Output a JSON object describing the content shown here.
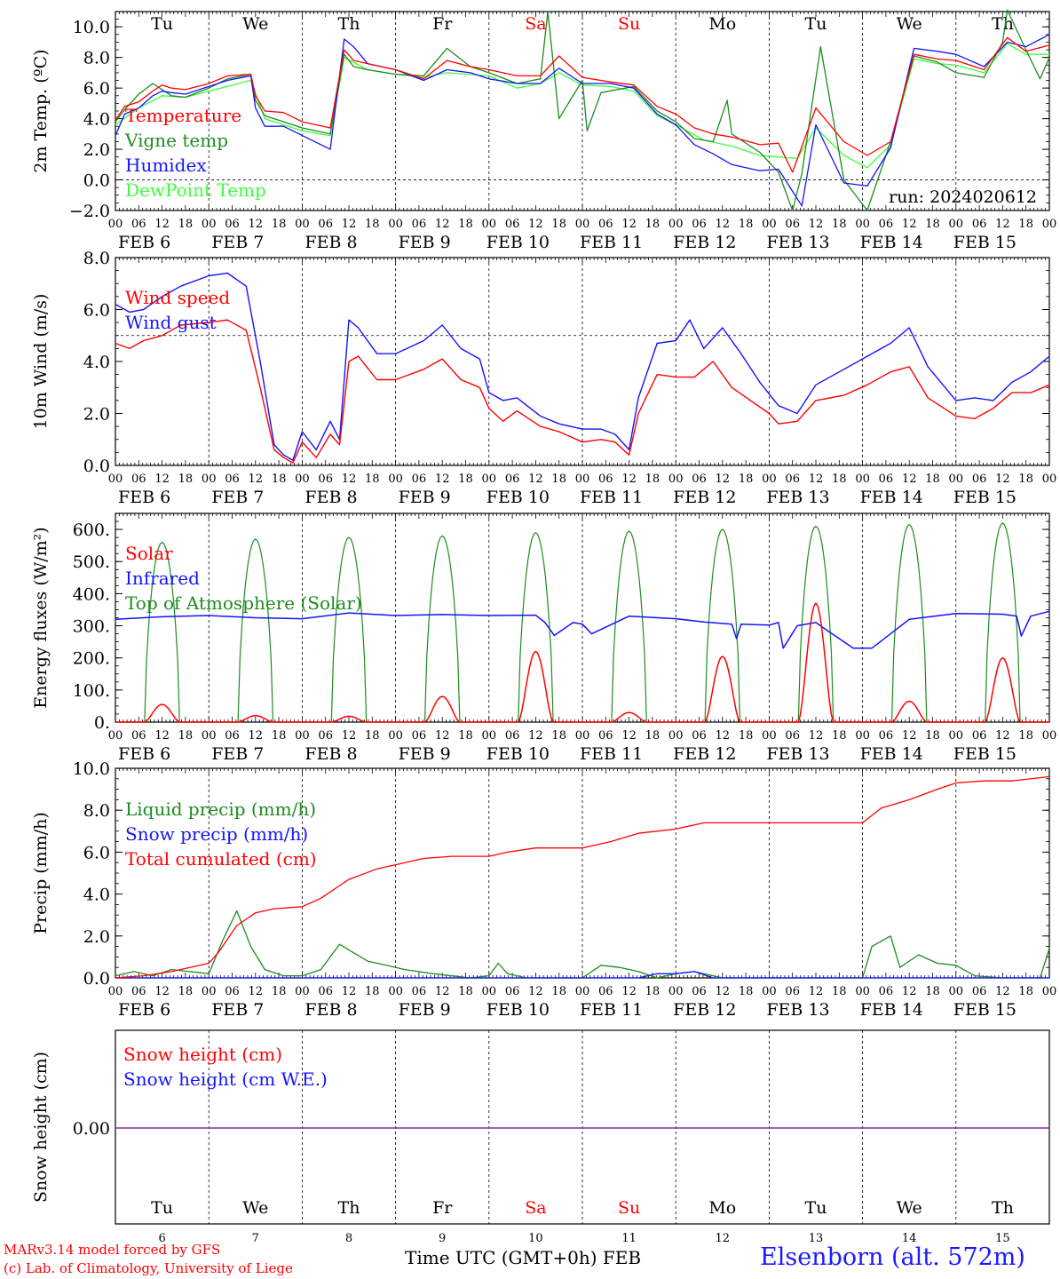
{
  "colors": {
    "red": "#ff0000",
    "green": "#1e8c1e",
    "blue": "#1414ff",
    "lightgreen": "#3cff3c",
    "purple": "#8030a0",
    "weekend": "#ff0000"
  },
  "days": [
    "Tu",
    "We",
    "Th",
    "Fr",
    "Sa",
    "Su",
    "Mo",
    "Tu",
    "We",
    "Th"
  ],
  "weekend_days": [
    4,
    5
  ],
  "date_labels": [
    "FEB  6",
    "FEB  7",
    "FEB  8",
    "FEB  9",
    "FEB 10",
    "FEB 11",
    "FEB 12",
    "FEB 13",
    "FEB 14",
    "FEB 15"
  ],
  "date_numbers": [
    "6",
    "7",
    "8",
    "9",
    "10",
    "11",
    "12",
    "13",
    "14",
    "15"
  ],
  "hour_ticks": [
    "00",
    "06",
    "12",
    "18"
  ],
  "hour_end": "00",
  "run_label": "run: 2024020612",
  "footer": {
    "model": "MARv3.14 model forced by GFS",
    "copyright": "(c) Lab. of Climatology, University of Liege",
    "time_axis": "Time UTC (GMT+0h) FEB",
    "station": "Elsenborn (alt. 572m)"
  },
  "chart_data": [
    {
      "type": "line",
      "ylabel": "2m Temp. (ºC)",
      "ylim": [
        -2,
        11
      ],
      "yticks": [
        "−2.0",
        "0.0",
        "2.0",
        "4.0",
        "6.0",
        "8.0",
        "10.0"
      ],
      "ytick_values": [
        -2,
        0,
        2,
        4,
        6,
        8,
        10
      ],
      "reference_line": 0,
      "x_unit": "days since FEB 6 00 UTC",
      "series": [
        {
          "name": "Temperature",
          "color": "red",
          "x": [
            0,
            0.1,
            0.25,
            0.4,
            0.5,
            0.6,
            0.75,
            1,
            1.2,
            1.45,
            1.5,
            1.6,
            1.8,
            2,
            2.3,
            2.45,
            2.55,
            2.7,
            3,
            3.3,
            3.55,
            3.8,
            4,
            4.3,
            4.55,
            4.75,
            5,
            5.3,
            5.55,
            5.8,
            6,
            6.2,
            6.4,
            6.6,
            6.9,
            7.1,
            7.25,
            7.5,
            7.8,
            8.05,
            8.3,
            8.55,
            8.8,
            9,
            9.3,
            9.55,
            9.75,
            10
          ],
          "values": [
            3.9,
            4.8,
            5.1,
            5.8,
            6.2,
            6.0,
            5.9,
            6.3,
            6.8,
            6.9,
            5.5,
            4.5,
            4.4,
            3.8,
            3.4,
            8.5,
            7.8,
            7.6,
            7.2,
            6.6,
            7.8,
            7.4,
            7.2,
            6.8,
            6.8,
            8.1,
            6.7,
            6.4,
            6.2,
            4.8,
            4.3,
            3.4,
            3.0,
            2.8,
            2.3,
            2.4,
            0.5,
            4.7,
            2.5,
            1.6,
            2.5,
            8.2,
            7.9,
            7.8,
            7.2,
            9.3,
            8.4,
            8.8
          ]
        },
        {
          "name": "Vigne temp",
          "color": "green",
          "x": [
            0,
            0.1,
            0.25,
            0.4,
            0.5,
            0.6,
            0.75,
            1,
            1.2,
            1.45,
            1.5,
            1.6,
            1.8,
            2,
            2.3,
            2.45,
            2.55,
            2.7,
            3,
            3.3,
            3.55,
            3.8,
            4,
            4.3,
            4.55,
            4.63,
            4.75,
            5,
            5.05,
            5.2,
            5.55,
            5.8,
            6,
            6.2,
            6.4,
            6.55,
            6.6,
            6.9,
            7.1,
            7.25,
            7.35,
            7.55,
            7.8,
            8.05,
            8.3,
            8.55,
            8.8,
            9,
            9.3,
            9.5,
            9.55,
            9.75,
            9.9,
            10
          ],
          "values": [
            3.8,
            4.6,
            5.6,
            6.3,
            5.9,
            5.5,
            5.4,
            6.0,
            6.6,
            6.9,
            5.2,
            4.2,
            3.8,
            3.4,
            3.0,
            8.2,
            7.4,
            7.2,
            6.9,
            6.8,
            8.6,
            7.4,
            7.0,
            6.3,
            6.6,
            11.0,
            4.0,
            6.5,
            3.2,
            5.7,
            6.1,
            4.5,
            3.8,
            2.7,
            2.5,
            5.2,
            3.0,
            1.8,
            0.5,
            -2.0,
            0.4,
            8.7,
            0.0,
            -2.0,
            2.5,
            8.1,
            7.7,
            7.0,
            6.7,
            9.0,
            11.1,
            8.5,
            6.6,
            8.0
          ]
        },
        {
          "name": "Humidex",
          "color": "blue",
          "x": [
            0,
            0.1,
            0.25,
            0.4,
            0.5,
            0.6,
            0.75,
            1,
            1.2,
            1.45,
            1.5,
            1.6,
            1.8,
            2,
            2.3,
            2.45,
            2.55,
            2.7,
            3,
            3.3,
            3.55,
            3.8,
            4,
            4.3,
            4.55,
            4.75,
            5,
            5.3,
            5.55,
            5.8,
            6,
            6.2,
            6.4,
            6.6,
            6.9,
            7.1,
            7.35,
            7.5,
            7.8,
            8.05,
            8.3,
            8.55,
            8.8,
            9,
            9.3,
            9.55,
            9.75,
            10
          ],
          "values": [
            2.9,
            4.3,
            4.7,
            5.5,
            5.8,
            5.7,
            5.6,
            6.1,
            6.5,
            6.8,
            4.7,
            3.5,
            3.5,
            2.9,
            2.0,
            9.2,
            8.7,
            7.6,
            7.2,
            6.5,
            7.2,
            7.0,
            6.6,
            6.3,
            6.3,
            7.3,
            6.3,
            6.3,
            6.0,
            4.3,
            3.6,
            2.3,
            1.7,
            1.0,
            0.6,
            0.7,
            -1.7,
            3.6,
            -0.2,
            -0.4,
            2.1,
            8.6,
            8.4,
            8.2,
            7.4,
            9.0,
            8.7,
            9.5
          ]
        },
        {
          "name": "DewPoint Temp",
          "color": "lightgreen",
          "x": [
            0,
            0.25,
            0.5,
            0.75,
            1,
            1.45,
            1.6,
            2,
            2.3,
            2.45,
            2.7,
            3,
            3.3,
            3.55,
            4,
            4.3,
            4.55,
            4.75,
            5,
            5.3,
            5.55,
            5.8,
            6,
            6.3,
            6.6,
            6.9,
            7.1,
            7.3,
            7.5,
            7.8,
            8.05,
            8.3,
            8.55,
            8.8,
            9,
            9.3,
            9.55,
            9.75,
            10
          ],
          "values": [
            3.6,
            4.7,
            5.5,
            5.4,
            5.8,
            6.5,
            4.0,
            3.2,
            2.9,
            8.0,
            7.2,
            6.9,
            6.7,
            7.0,
            6.8,
            6.0,
            6.3,
            7.0,
            6.2,
            6.1,
            5.8,
            4.2,
            3.6,
            2.6,
            2.2,
            1.6,
            1.5,
            1.4,
            3.4,
            1.6,
            0.8,
            2.3,
            7.9,
            7.6,
            7.5,
            7.0,
            8.9,
            8.2,
            8.2
          ]
        }
      ]
    },
    {
      "type": "line",
      "ylabel": "10m Wind (m/s)",
      "ylim": [
        0,
        8
      ],
      "yticks": [
        "0.0",
        "2.0",
        "4.0",
        "6.0",
        "8.0"
      ],
      "ytick_values": [
        0,
        2,
        4,
        6,
        8
      ],
      "reference_line": 5,
      "x_unit": "days since FEB 6 00 UTC",
      "series": [
        {
          "name": "Wind speed",
          "color": "red",
          "x": [
            0,
            0.15,
            0.3,
            0.5,
            0.7,
            1,
            1.2,
            1.4,
            1.55,
            1.7,
            1.8,
            1.9,
            2,
            2.15,
            2.3,
            2.4,
            2.5,
            2.6,
            2.8,
            3,
            3.3,
            3.5,
            3.7,
            3.9,
            4,
            4.15,
            4.3,
            4.55,
            4.75,
            5,
            5.2,
            5.35,
            5.5,
            5.6,
            5.8,
            6,
            6.2,
            6.4,
            6.6,
            6.8,
            7,
            7.1,
            7.3,
            7.5,
            7.8,
            8.05,
            8.3,
            8.5,
            8.7,
            9,
            9.2,
            9.4,
            9.6,
            9.8,
            10
          ],
          "values": [
            4.7,
            4.5,
            4.8,
            5.0,
            5.4,
            5.5,
            5.6,
            5.2,
            3.0,
            0.6,
            0.3,
            0.1,
            0.9,
            0.3,
            1.2,
            0.8,
            4.0,
            4.2,
            3.3,
            3.3,
            3.7,
            4.1,
            3.3,
            3.0,
            2.2,
            1.7,
            2.1,
            1.5,
            1.3,
            0.9,
            1.0,
            0.9,
            0.4,
            2.0,
            3.5,
            3.4,
            3.4,
            4.0,
            3.0,
            2.5,
            2.0,
            1.6,
            1.7,
            2.5,
            2.7,
            3.1,
            3.6,
            3.8,
            2.6,
            1.9,
            1.8,
            2.2,
            2.8,
            2.8,
            3.1
          ]
        },
        {
          "name": "Wind gust",
          "color": "blue",
          "x": [
            0,
            0.15,
            0.3,
            0.5,
            0.7,
            1,
            1.2,
            1.4,
            1.55,
            1.7,
            1.8,
            1.9,
            2,
            2.15,
            2.3,
            2.4,
            2.5,
            2.6,
            2.8,
            3,
            3.3,
            3.5,
            3.7,
            3.9,
            4,
            4.15,
            4.3,
            4.55,
            4.75,
            5,
            5.2,
            5.35,
            5.5,
            5.6,
            5.8,
            6,
            6.15,
            6.3,
            6.5,
            6.7,
            6.9,
            7.1,
            7.3,
            7.5,
            7.8,
            8.05,
            8.3,
            8.5,
            8.7,
            9,
            9.2,
            9.4,
            9.6,
            9.8,
            10
          ],
          "values": [
            6.2,
            5.9,
            6.0,
            6.5,
            6.9,
            7.3,
            7.4,
            6.9,
            4.0,
            0.8,
            0.4,
            0.2,
            1.3,
            0.6,
            1.7,
            1.0,
            5.6,
            5.3,
            4.3,
            4.3,
            4.8,
            5.4,
            4.5,
            4.1,
            2.8,
            2.5,
            2.6,
            1.9,
            1.6,
            1.4,
            1.4,
            1.2,
            0.6,
            2.6,
            4.7,
            4.8,
            5.6,
            4.5,
            5.3,
            4.3,
            3.2,
            2.3,
            2.0,
            3.1,
            3.7,
            4.2,
            4.7,
            5.3,
            3.8,
            2.5,
            2.6,
            2.5,
            3.2,
            3.6,
            4.2
          ]
        }
      ]
    },
    {
      "type": "line",
      "ylabel": "Energy fluxes (W/m²)",
      "ylim": [
        0,
        650
      ],
      "yticks": [
        "0.",
        "100.",
        "200.",
        "300.",
        "400.",
        "500.",
        "600."
      ],
      "ytick_values": [
        0,
        100,
        200,
        300,
        400,
        500,
        600
      ],
      "x_unit": "days since FEB 6 00 UTC",
      "series": [
        {
          "name": "Solar",
          "color": "red",
          "peaks": [
            55,
            20,
            18,
            80,
            220,
            30,
            205,
            370,
            65,
            200
          ]
        },
        {
          "name": "Infrared",
          "color": "blue",
          "x": [
            0,
            0.5,
            1,
            1.5,
            2,
            2.5,
            3,
            3.5,
            4,
            4.5,
            4.6,
            4.7,
            4.9,
            5,
            5.1,
            5.5,
            6,
            6.3,
            6.6,
            6.65,
            6.7,
            7,
            7.1,
            7.15,
            7.3,
            7.5,
            7.6,
            7.9,
            8.1,
            8.5,
            9,
            9.5,
            9.65,
            9.7,
            9.8,
            10
          ],
          "values": [
            320,
            328,
            332,
            325,
            322,
            340,
            332,
            335,
            332,
            333,
            310,
            270,
            310,
            305,
            275,
            330,
            322,
            312,
            305,
            260,
            305,
            302,
            310,
            230,
            300,
            310,
            290,
            230,
            230,
            320,
            338,
            336,
            330,
            268,
            330,
            345
          ]
        },
        {
          "name": "Top of Atmosphere (Solar)",
          "color": "green",
          "peaks": [
            560,
            570,
            575,
            580,
            590,
            595,
            600,
            610,
            615,
            620
          ]
        }
      ]
    },
    {
      "type": "line",
      "ylabel": "Precip (mm/h)",
      "ylim": [
        0,
        10
      ],
      "yticks": [
        "0.0",
        "2.0",
        "4.0",
        "6.0",
        "8.0",
        "10.0"
      ],
      "ytick_values": [
        0,
        2,
        4,
        6,
        8,
        10
      ],
      "x_unit": "days since FEB 6 00 UTC",
      "series": [
        {
          "name": "Liquid precip (mm/h)",
          "color": "green",
          "x": [
            0,
            0.2,
            0.4,
            0.6,
            0.8,
            1,
            1.15,
            1.3,
            1.45,
            1.6,
            1.8,
            2,
            2.2,
            2.4,
            2.55,
            2.7,
            2.9,
            3.1,
            3.4,
            3.8,
            4,
            4.1,
            4.2,
            4.4,
            4.6,
            5,
            5.2,
            5.4,
            5.6,
            5.8,
            6,
            6.2,
            6.5,
            7,
            7.5,
            8,
            8.1,
            8.3,
            8.4,
            8.6,
            8.8,
            9,
            9.2,
            9.5,
            9.9,
            10
          ],
          "values": [
            0.1,
            0.3,
            0.1,
            0.4,
            0.3,
            0.2,
            1.8,
            3.2,
            1.5,
            0.4,
            0.1,
            0.1,
            0.4,
            1.6,
            1.2,
            0.8,
            0.6,
            0.4,
            0.2,
            0.0,
            0.1,
            0.7,
            0.2,
            0.0,
            0.0,
            0.0,
            0.6,
            0.5,
            0.3,
            0.0,
            0.2,
            0.3,
            0.0,
            0.0,
            0.0,
            0.0,
            1.5,
            2.0,
            0.5,
            1.1,
            0.7,
            0.6,
            0.1,
            0.0,
            0.0,
            1.4
          ]
        },
        {
          "name": "Snow precip (mm/h)",
          "color": "blue",
          "x": [
            0,
            5.6,
            5.8,
            6,
            6.2,
            6.4,
            10
          ],
          "values": [
            0,
            0,
            0.2,
            0.2,
            0.3,
            0,
            0
          ]
        },
        {
          "name": "Total cumulated (cm)",
          "color": "red",
          "x": [
            0,
            0.3,
            0.6,
            1,
            1.1,
            1.3,
            1.5,
            1.7,
            2,
            2.2,
            2.5,
            2.8,
            3,
            3.3,
            3.6,
            4,
            4.2,
            4.5,
            5,
            5.3,
            5.6,
            6,
            6.3,
            6.6,
            7,
            7.5,
            8,
            8.2,
            8.5,
            8.8,
            9,
            9.3,
            9.6,
            10
          ],
          "values": [
            0.0,
            0.1,
            0.3,
            0.7,
            1.2,
            2.5,
            3.1,
            3.3,
            3.4,
            3.8,
            4.7,
            5.2,
            5.4,
            5.7,
            5.8,
            5.8,
            6.0,
            6.2,
            6.2,
            6.5,
            6.9,
            7.1,
            7.4,
            7.4,
            7.4,
            7.4,
            7.4,
            8.1,
            8.5,
            9.0,
            9.3,
            9.4,
            9.4,
            9.6
          ]
        }
      ]
    },
    {
      "type": "line",
      "ylabel": "Snow height (cm)",
      "yticks": [
        "0.00"
      ],
      "ytick_values": [
        0
      ],
      "series": [
        {
          "name": "Snow height (cm)",
          "color": "red",
          "values": [
            0,
            0
          ]
        },
        {
          "name": "Snow height (cm W.E.)",
          "color": "blue",
          "values": [
            0,
            0
          ]
        }
      ]
    }
  ]
}
